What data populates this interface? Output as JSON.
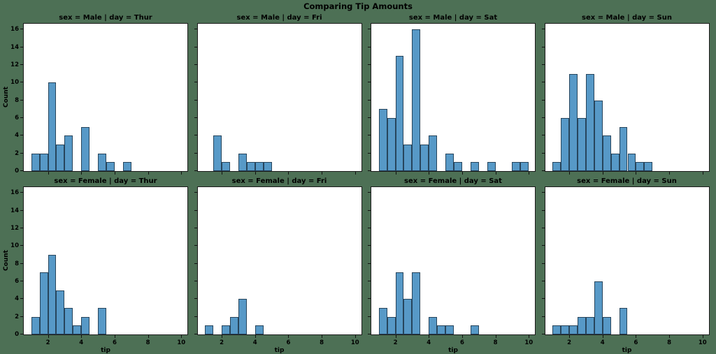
{
  "figure": {
    "title": "Comparing Tip Amounts",
    "background_color": "#4d7055",
    "axes_background": "#ffffff"
  },
  "style": {
    "bar_fill": "#5799c7",
    "bar_edge": "#27455c",
    "spine_color": "#1c1c1c",
    "text_color": "#000000"
  },
  "chart_data": {
    "type": "bar",
    "subtype": "faceted-histogram",
    "x_variable": "tip",
    "row_variable": "sex",
    "col_variable": "day",
    "xlabel": "tip",
    "ylabel": "Count",
    "xticks": [
      2,
      4,
      6,
      8,
      10
    ],
    "yticks": [
      0,
      2,
      4,
      6,
      8,
      10,
      12,
      14,
      16
    ],
    "xlim": [
      0.55,
      10.45
    ],
    "ylim": [
      0,
      16.8
    ],
    "bin_start": 1.0,
    "bin_width": 0.5,
    "grid": "off",
    "legend": "none",
    "facets": [
      {
        "title": "sex = Male | day = Thur",
        "sex": "Male",
        "day": "Thur",
        "total": 30,
        "counts": [
          2,
          2,
          10,
          3,
          4,
          0,
          5,
          0,
          2,
          1,
          0,
          1,
          0,
          0,
          0,
          0,
          0,
          0
        ]
      },
      {
        "title": "sex = Male | day = Fri",
        "sex": "Male",
        "day": "Fri",
        "total": 10,
        "counts": [
          0,
          4,
          1,
          0,
          2,
          1,
          1,
          1,
          0,
          0,
          0,
          0,
          0,
          0,
          0,
          0,
          0,
          0
        ]
      },
      {
        "title": "sex = Male | day = Sat",
        "sex": "Male",
        "day": "Sat",
        "total": 59,
        "counts": [
          7,
          6,
          13,
          3,
          16,
          3,
          4,
          0,
          2,
          1,
          0,
          1,
          0,
          1,
          0,
          0,
          1,
          1
        ]
      },
      {
        "title": "sex = Male | day = Sun",
        "sex": "Male",
        "day": "Sun",
        "total": 58,
        "counts": [
          1,
          6,
          11,
          6,
          11,
          8,
          4,
          2,
          5,
          2,
          1,
          1,
          0,
          0,
          0,
          0,
          0,
          0
        ]
      },
      {
        "title": "sex = Female | day = Thur",
        "sex": "Female",
        "day": "Thur",
        "total": 32,
        "counts": [
          2,
          7,
          9,
          5,
          3,
          1,
          2,
          0,
          3,
          0,
          0,
          0,
          0,
          0,
          0,
          0,
          0,
          0
        ]
      },
      {
        "title": "sex = Female | day = Fri",
        "sex": "Female",
        "day": "Fri",
        "total": 9,
        "counts": [
          1,
          0,
          1,
          2,
          4,
          0,
          1,
          0,
          0,
          0,
          0,
          0,
          0,
          0,
          0,
          0,
          0,
          0
        ]
      },
      {
        "title": "sex = Female | day = Sat",
        "sex": "Female",
        "day": "Sat",
        "total": 28,
        "counts": [
          3,
          2,
          7,
          4,
          7,
          0,
          2,
          1,
          1,
          0,
          0,
          1,
          0,
          0,
          0,
          0,
          0,
          0
        ]
      },
      {
        "title": "sex = Female | day = Sun",
        "sex": "Female",
        "day": "Sun",
        "total": 18,
        "counts": [
          1,
          1,
          1,
          2,
          2,
          6,
          2,
          0,
          3,
          0,
          0,
          0,
          0,
          0,
          0,
          0,
          0,
          0
        ]
      }
    ]
  }
}
